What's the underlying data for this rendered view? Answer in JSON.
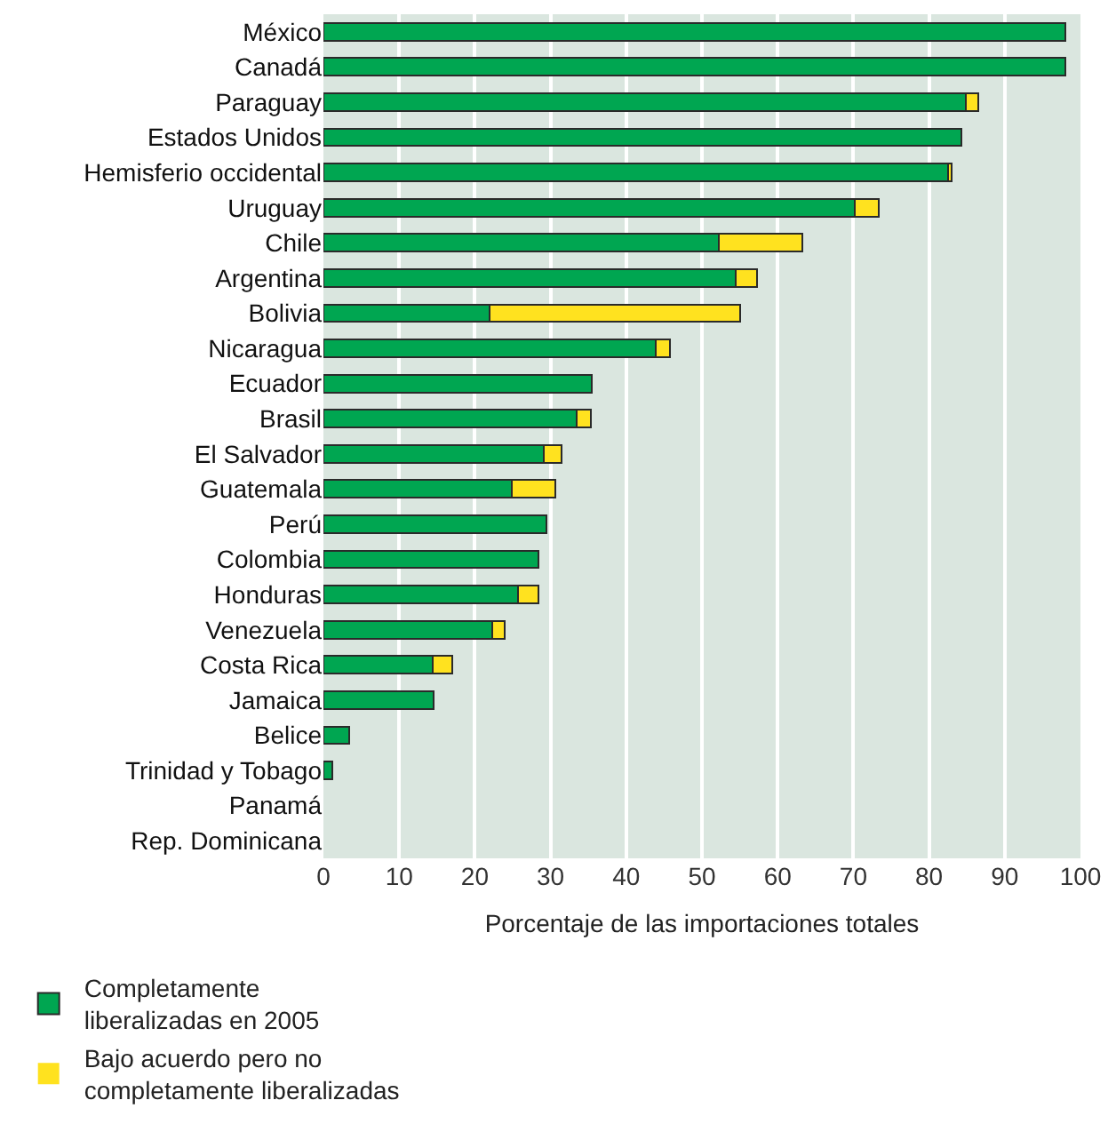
{
  "chart_data": {
    "type": "bar",
    "orientation": "horizontal",
    "stacked": true,
    "xlabel": "Porcentaje de las importaciones totales",
    "categories": [
      "México",
      "Canadá",
      "Paraguay",
      "Estados Unidos",
      "Hemisferio occidental",
      "Uruguay",
      "Chile",
      "Argentina",
      "Bolivia",
      "Nicaragua",
      "Ecuador",
      "Brasil",
      "El Salvador",
      "Guatemala",
      "Perú",
      "Colombia",
      "Honduras",
      "Venezuela",
      "Costa Rica",
      "Jamaica",
      "Belice",
      "Trinidad y Tobago",
      "Panamá",
      "Rep. Dominicana"
    ],
    "series": [
      {
        "name": "Completamente liberalizadas en 2005",
        "color": "#00a651",
        "values": [
          98,
          98,
          84.9,
          84.3,
          82.5,
          70.2,
          52.2,
          54.5,
          21.9,
          43.9,
          35.5,
          33.5,
          29.1,
          24.9,
          29.5,
          28.4,
          25.7,
          22.3,
          14.4,
          14.5,
          3.4,
          1.2,
          0,
          0
        ]
      },
      {
        "name": "Bajo acuerdo pero no completamente liberalizadas",
        "color": "#ffe21f",
        "values": [
          0,
          0,
          1.6,
          0,
          0.5,
          3.2,
          11.1,
          2.8,
          33.2,
          1.9,
          0,
          1.8,
          2.3,
          5.7,
          0,
          0,
          2.7,
          1.7,
          2.6,
          0,
          0,
          0,
          0,
          0
        ]
      }
    ],
    "xlim": [
      0,
      100
    ],
    "xticks": [
      0,
      10,
      20,
      30,
      40,
      50,
      60,
      70,
      80,
      90,
      100
    ],
    "grid": "x",
    "legend": "bottom"
  }
}
